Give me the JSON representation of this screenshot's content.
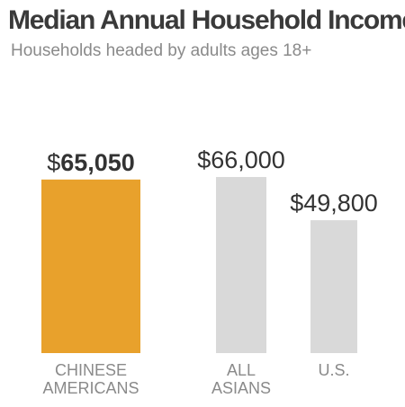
{
  "title": "Median Annual Household Income",
  "subtitle": "Households headed by adults ages 18+",
  "colors": {
    "highlight": "#e8a12c",
    "default": "#d9d9d9",
    "value_text": "#333333",
    "category_text": "#8a8a8a"
  },
  "chart_data": {
    "type": "bar",
    "categories": [
      [
        "CHINESE",
        "AMERICANS"
      ],
      [
        "ALL",
        "ASIANS"
      ],
      [
        "U.S."
      ]
    ],
    "values": [
      65050,
      66000,
      49800
    ],
    "value_labels": [
      {
        "prefix": "$",
        "value": "65,050",
        "bold": true
      },
      {
        "prefix": "$",
        "value": "66,000",
        "bold": false
      },
      {
        "prefix": "$",
        "value": "49,800",
        "bold": false
      }
    ],
    "highlight_index": 0,
    "ylim": [
      0,
      66000
    ],
    "grid": false,
    "legend": false
  }
}
